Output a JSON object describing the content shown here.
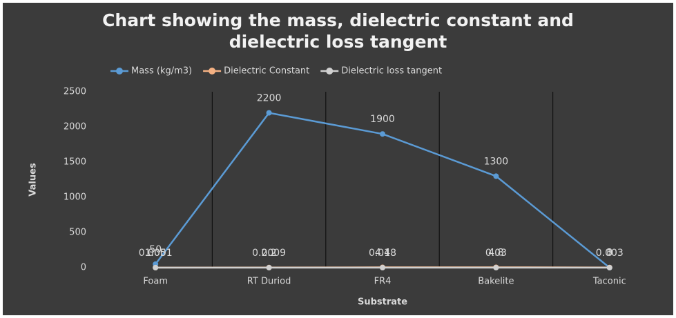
{
  "chart_data": {
    "type": "line",
    "title": "Chart showing the mass, dielectric constant and dielectric loss tangent",
    "xlabel": "Substrate",
    "ylabel": "Values",
    "categories": [
      "Foam",
      "RT Duriod",
      "FR4",
      "Bakelite",
      "Taconic"
    ],
    "series": [
      {
        "name": "Mass (kg/m3)",
        "color": "#5b9bd5",
        "values": [
          50,
          2200,
          1900,
          1300,
          0
        ]
      },
      {
        "name": "Dielectric Constant",
        "color": "#f4b183",
        "values": [
          1.05,
          2.2,
          4.4,
          4.8,
          3
        ]
      },
      {
        "name": "Dielectric loss tangent",
        "color": "#d0d0d0",
        "values": [
          0.0001,
          0.0009,
          0.018,
          0.03,
          0.003
        ]
      }
    ],
    "ylim": [
      0,
      2500
    ],
    "yticks": [
      0,
      500,
      1000,
      1500,
      2000,
      2500
    ],
    "legend": "top"
  }
}
